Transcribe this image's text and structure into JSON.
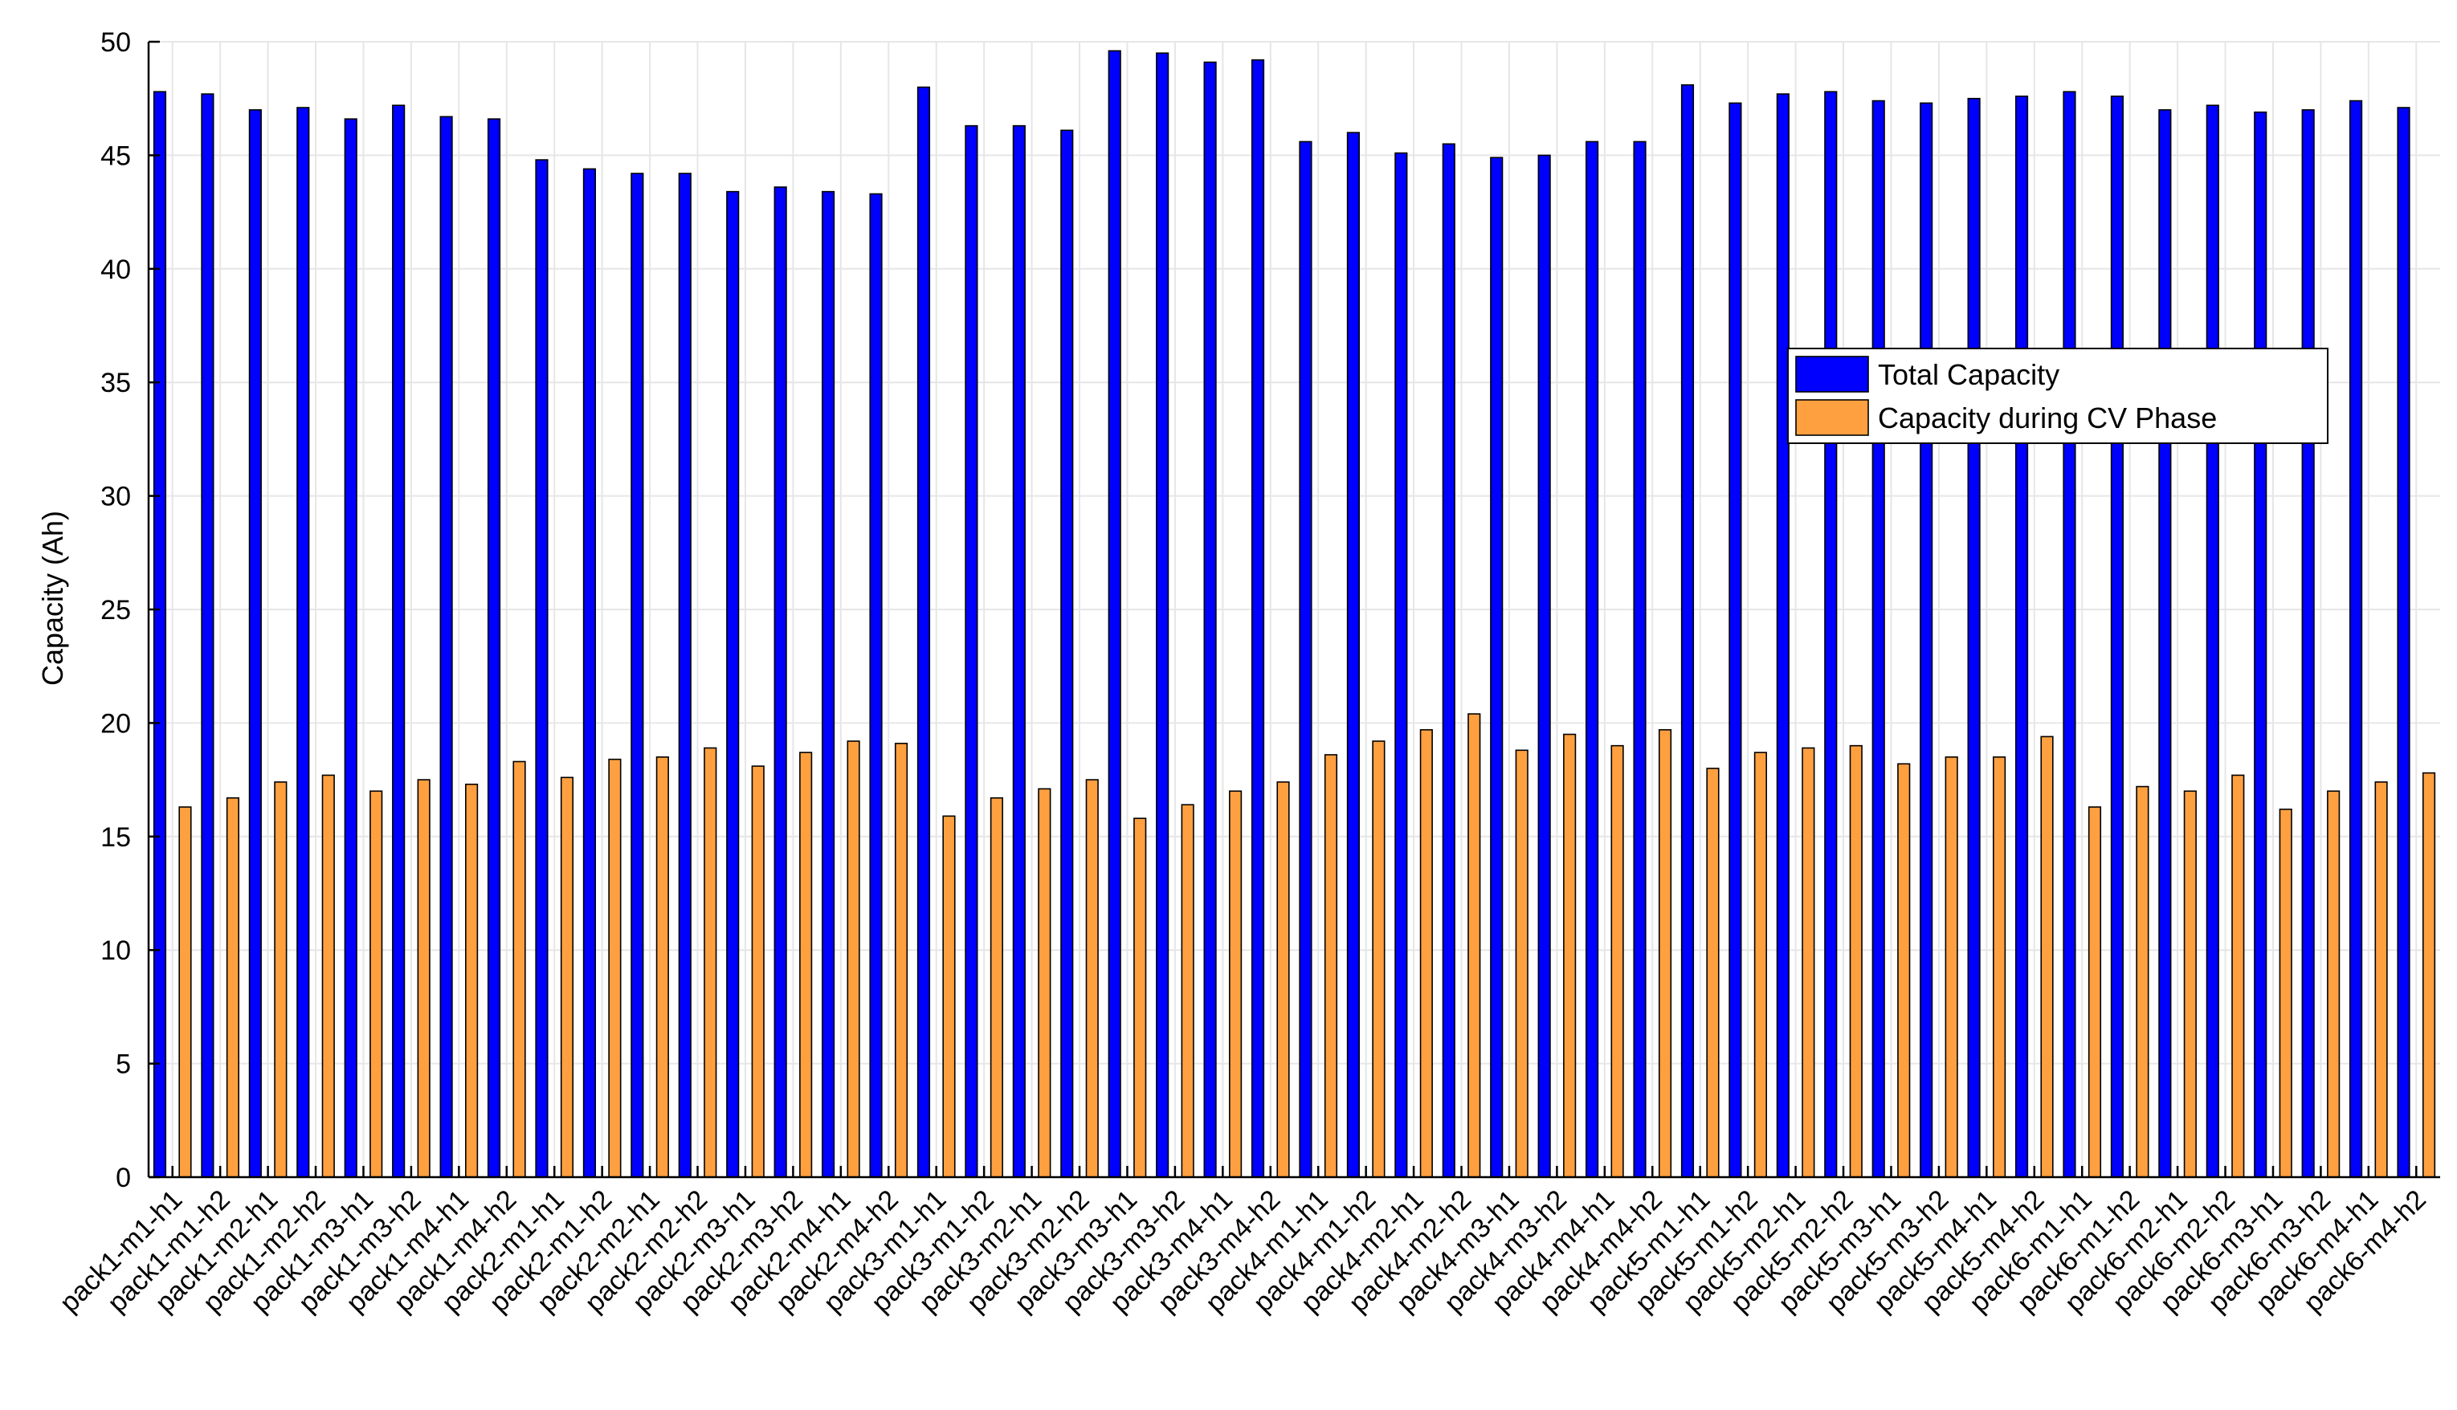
{
  "chart_data": {
    "type": "bar",
    "title": "",
    "xlabel": "",
    "ylabel": "Capacity (Ah)",
    "ylim": [
      0,
      50
    ],
    "yticks": [
      0,
      5,
      10,
      15,
      20,
      25,
      30,
      35,
      40,
      45,
      50
    ],
    "grid": true,
    "legend_position": "right",
    "categories": [
      "pack1-m1-h1",
      "pack1-m1-h2",
      "pack1-m2-h1",
      "pack1-m2-h2",
      "pack1-m3-h1",
      "pack1-m3-h2",
      "pack1-m4-h1",
      "pack1-m4-h2",
      "pack2-m1-h1",
      "pack2-m1-h2",
      "pack2-m2-h1",
      "pack2-m2-h2",
      "pack2-m3-h1",
      "pack2-m3-h2",
      "pack2-m4-h1",
      "pack2-m4-h2",
      "pack3-m1-h1",
      "pack3-m1-h2",
      "pack3-m2-h1",
      "pack3-m2-h2",
      "pack3-m3-h1",
      "pack3-m3-h2",
      "pack3-m4-h1",
      "pack3-m4-h2",
      "pack4-m1-h1",
      "pack4-m1-h2",
      "pack4-m2-h1",
      "pack4-m2-h2",
      "pack4-m3-h1",
      "pack4-m3-h2",
      "pack4-m4-h1",
      "pack4-m4-h2",
      "pack5-m1-h1",
      "pack5-m1-h2",
      "pack5-m2-h1",
      "pack5-m2-h2",
      "pack5-m3-h1",
      "pack5-m3-h2",
      "pack5-m4-h1",
      "pack5-m4-h2",
      "pack6-m1-h1",
      "pack6-m1-h2",
      "pack6-m2-h1",
      "pack6-m2-h2",
      "pack6-m3-h1",
      "pack6-m3-h2",
      "pack6-m4-h1",
      "pack6-m4-h2"
    ],
    "series": [
      {
        "name": "Total Capacity",
        "color": "#0000ff",
        "values": [
          47.8,
          47.7,
          47.0,
          47.1,
          46.6,
          47.2,
          46.7,
          46.6,
          44.8,
          44.4,
          44.2,
          44.2,
          43.4,
          43.6,
          43.4,
          43.3,
          48.0,
          46.3,
          46.3,
          46.1,
          49.6,
          49.5,
          49.1,
          49.2,
          45.6,
          46.0,
          45.1,
          45.5,
          44.9,
          45.0,
          45.6,
          45.6,
          48.1,
          47.3,
          47.7,
          47.8,
          47.4,
          47.3,
          47.5,
          47.6,
          47.8,
          47.6,
          47.0,
          47.2,
          46.9,
          47.0,
          47.4,
          47.1
        ]
      },
      {
        "name": "Capacity during CV Phase",
        "color": "#ffa040",
        "values": [
          16.3,
          16.7,
          17.4,
          17.7,
          17.0,
          17.5,
          17.3,
          18.3,
          17.6,
          18.4,
          18.5,
          18.9,
          18.1,
          18.7,
          19.2,
          19.1,
          15.9,
          16.7,
          17.1,
          17.5,
          15.8,
          16.4,
          17.0,
          17.4,
          18.6,
          19.2,
          19.7,
          20.4,
          18.8,
          19.5,
          19.0,
          19.7,
          18.0,
          18.7,
          18.9,
          19.0,
          18.2,
          18.5,
          18.5,
          19.4,
          16.3,
          17.2,
          17.0,
          17.7,
          16.2,
          17.0,
          17.4,
          17.8
        ]
      }
    ]
  }
}
